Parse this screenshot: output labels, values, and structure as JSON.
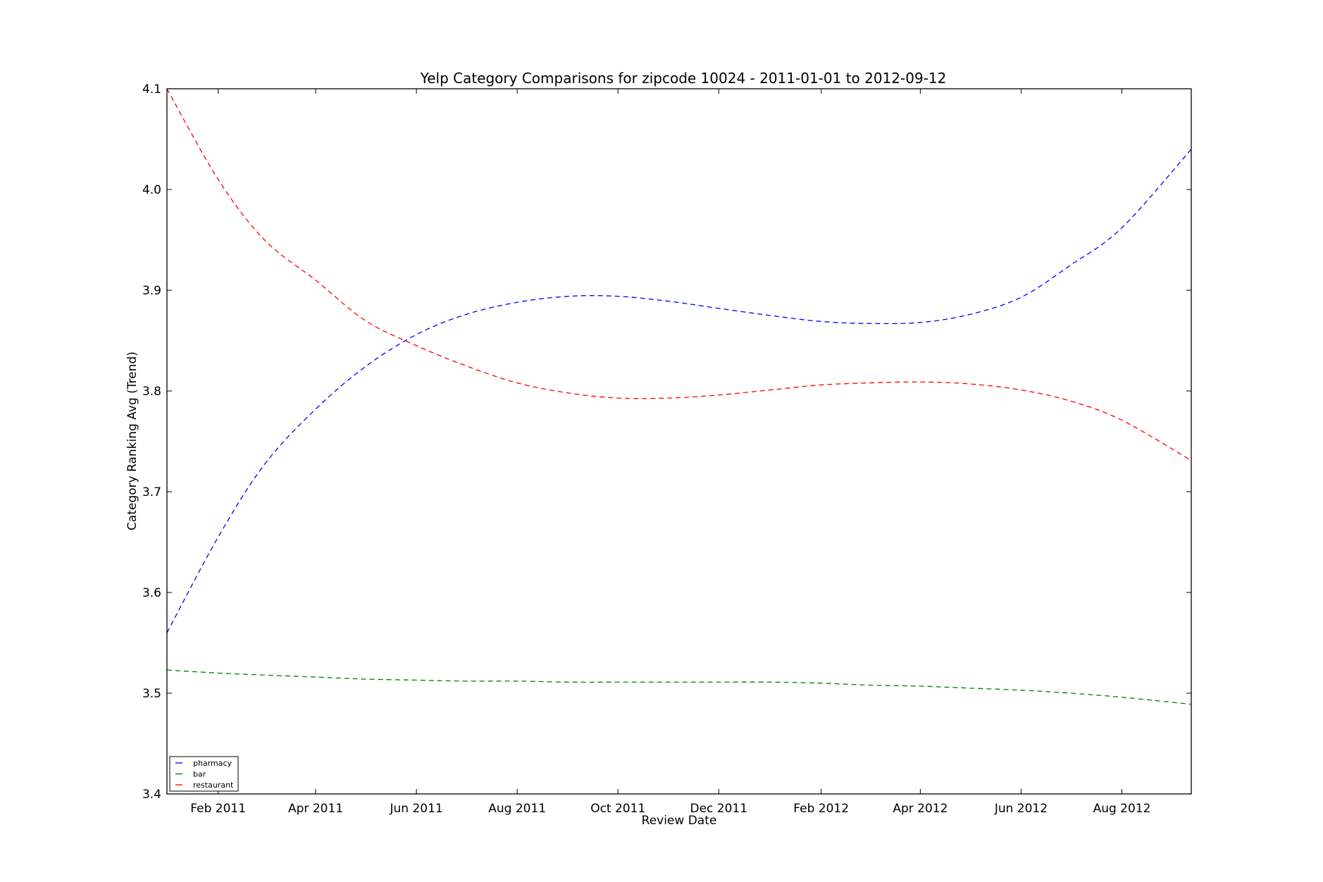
{
  "chart_data": {
    "type": "line",
    "title": "Yelp Category Comparisons for zipcode 10024 - 2011-01-01 to 2012-09-12",
    "xlabel": "Review Date",
    "ylabel": "Category Ranking Avg (Trend)",
    "xlim": [
      "2011-01-01",
      "2012-09-12"
    ],
    "ylim": [
      3.4,
      4.1
    ],
    "x_ticks": [
      "2011-02-01",
      "2011-04-01",
      "2011-06-01",
      "2011-08-01",
      "2011-10-01",
      "2011-12-01",
      "2012-02-01",
      "2012-04-01",
      "2012-06-01",
      "2012-08-01"
    ],
    "x_tick_labels": [
      "Feb 2011",
      "Apr 2011",
      "Jun 2011",
      "Aug 2011",
      "Oct 2011",
      "Dec 2011",
      "Feb 2012",
      "Apr 2012",
      "Jun 2012",
      "Aug 2012"
    ],
    "y_ticks": [
      3.4,
      3.5,
      3.6,
      3.7,
      3.8,
      3.9,
      4.0,
      4.1
    ],
    "y_tick_labels": [
      "3.4",
      "3.5",
      "3.6",
      "3.7",
      "3.8",
      "3.9",
      "4.0",
      "4.1"
    ],
    "grid": false,
    "legend_position": "bottom-left",
    "line_style": "dashed",
    "x": [
      "2011-01-01",
      "2011-02-01",
      "2011-03-01",
      "2011-04-01",
      "2011-05-01",
      "2011-06-01",
      "2011-07-01",
      "2011-08-01",
      "2011-09-01",
      "2011-10-01",
      "2011-11-01",
      "2011-12-01",
      "2012-01-01",
      "2012-02-01",
      "2012-03-01",
      "2012-04-01",
      "2012-05-01",
      "2012-06-01",
      "2012-07-01",
      "2012-08-01",
      "2012-09-12"
    ],
    "series": [
      {
        "name": "pharmacy",
        "color": "#0000ff",
        "values": [
          3.56,
          3.655,
          3.727,
          3.782,
          3.824,
          3.856,
          3.876,
          3.888,
          3.894,
          3.894,
          3.889,
          3.882,
          3.875,
          3.869,
          3.867,
          3.868,
          3.876,
          3.893,
          3.925,
          3.962,
          4.04
        ]
      },
      {
        "name": "bar",
        "color": "#008000",
        "values": [
          3.523,
          3.52,
          3.518,
          3.516,
          3.514,
          3.513,
          3.512,
          3.512,
          3.511,
          3.511,
          3.511,
          3.511,
          3.511,
          3.51,
          3.508,
          3.507,
          3.505,
          3.503,
          3.5,
          3.496,
          3.489
        ]
      },
      {
        "name": "restaurant",
        "color": "#ff0000",
        "values": [
          4.1,
          4.01,
          3.95,
          3.91,
          3.87,
          3.845,
          3.825,
          3.808,
          3.798,
          3.793,
          3.793,
          3.796,
          3.801,
          3.806,
          3.808,
          3.809,
          3.807,
          3.801,
          3.79,
          3.771,
          3.731
        ]
      }
    ]
  }
}
